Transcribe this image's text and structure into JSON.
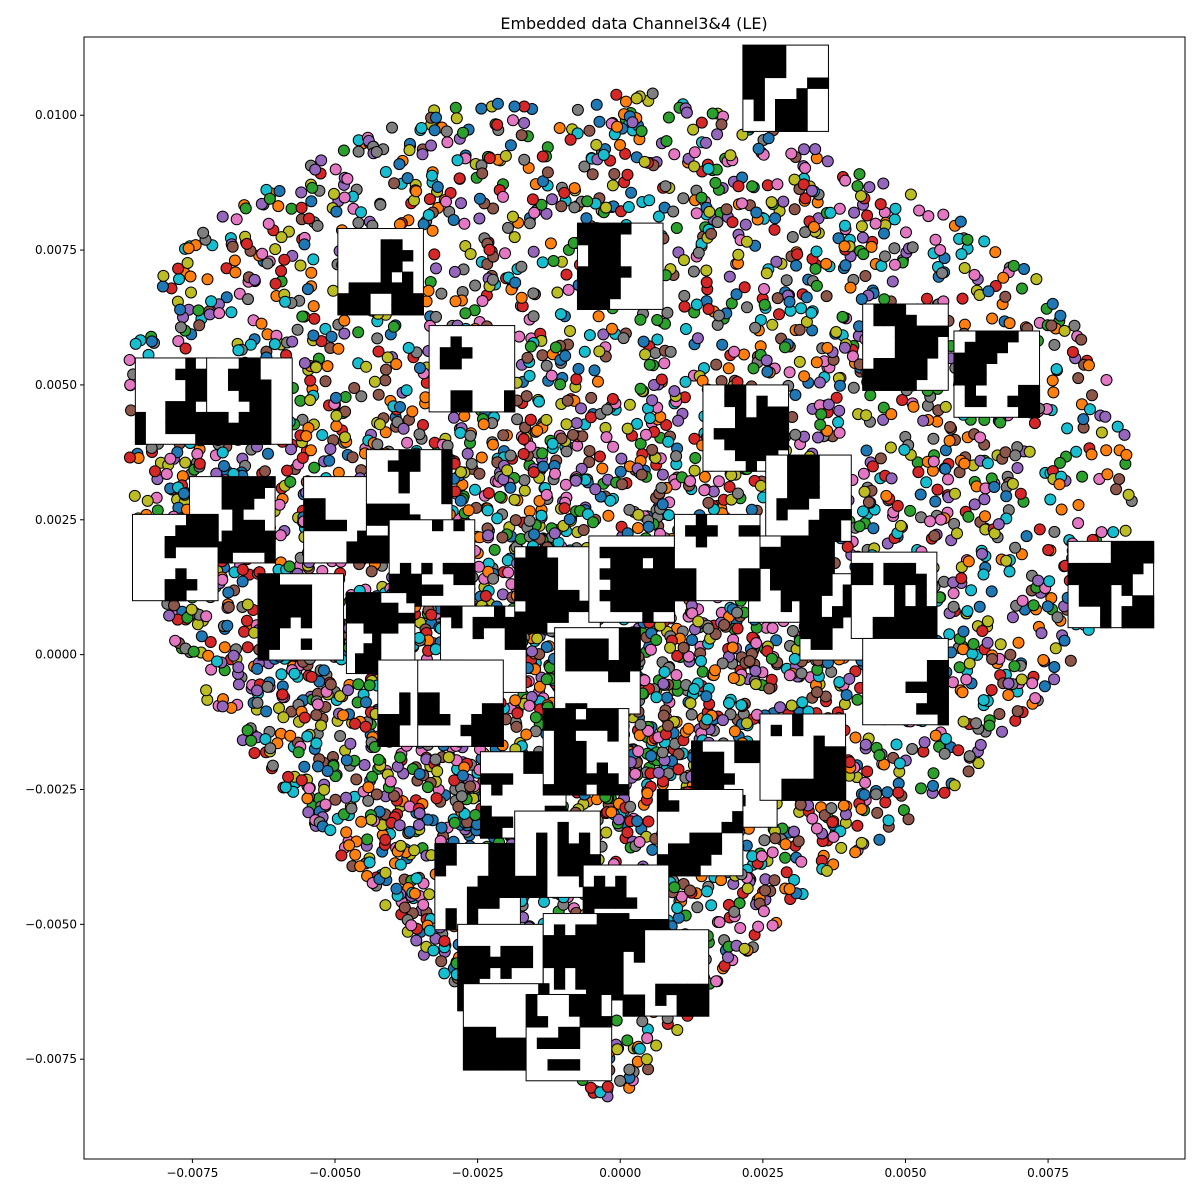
{
  "chart_data": {
    "type": "scatter",
    "title": "Embedded data Channel3&4 (LE)",
    "xlabel": "",
    "ylabel": "",
    "xlim": [
      -0.0094,
      0.0099
    ],
    "ylim": [
      -0.00935,
      0.01145
    ],
    "x_ticks": [
      -0.0075,
      -0.005,
      -0.0025,
      0.0,
      0.0025,
      0.005,
      0.0075
    ],
    "x_tick_labels": [
      "−0.0075",
      "−0.0050",
      "−0.0025",
      "0.0000",
      "0.0025",
      "0.0050",
      "0.0075"
    ],
    "y_ticks": [
      -0.0075,
      -0.005,
      -0.0025,
      0.0,
      0.0025,
      0.005,
      0.0075,
      0.01
    ],
    "y_tick_labels": [
      "−0.0075",
      "−0.0050",
      "−0.0025",
      "0.0000",
      "0.0025",
      "0.0050",
      "0.0075",
      "0.0100"
    ],
    "grid": false,
    "legend": "none",
    "marker_edge_color": "#000000",
    "palette": [
      "#1f77b4",
      "#ff7f0e",
      "#2ca02c",
      "#d62728",
      "#9467bd",
      "#8c564b",
      "#e377c2",
      "#7f7f7f",
      "#bcbd22",
      "#17becf"
    ],
    "boundary": [
      [
        0.0,
        -0.0084
      ],
      [
        -0.0012,
        -0.0078
      ],
      [
        -0.0025,
        -0.0068
      ],
      [
        -0.0035,
        -0.0055
      ],
      [
        -0.0045,
        -0.0042
      ],
      [
        -0.0055,
        -0.003
      ],
      [
        -0.0065,
        -0.0018
      ],
      [
        -0.0075,
        -0.0005
      ],
      [
        -0.0083,
        0.0015
      ],
      [
        -0.0087,
        0.0035
      ],
      [
        -0.0086,
        0.0055
      ],
      [
        -0.008,
        0.0073
      ],
      [
        -0.0068,
        0.0083
      ],
      [
        -0.0055,
        0.0091
      ],
      [
        -0.0042,
        0.0098
      ],
      [
        -0.0025,
        0.0104
      ],
      [
        -0.001,
        0.0101
      ],
      [
        0.0005,
        0.0106
      ],
      [
        0.0018,
        0.0102
      ],
      [
        0.003,
        0.0096
      ],
      [
        0.0042,
        0.009
      ],
      [
        0.0055,
        0.0084
      ],
      [
        0.0065,
        0.0078
      ],
      [
        0.0075,
        0.0068
      ],
      [
        0.0082,
        0.0058
      ],
      [
        0.0088,
        0.0045
      ],
      [
        0.009,
        0.003
      ],
      [
        0.0087,
        0.0015
      ],
      [
        0.008,
        0.0
      ],
      [
        0.0068,
        -0.0015
      ],
      [
        0.0055,
        -0.0028
      ],
      [
        0.004,
        -0.0038
      ],
      [
        0.0028,
        -0.005
      ],
      [
        0.0015,
        -0.0063
      ],
      [
        0.0007,
        -0.0074
      ]
    ],
    "points_per_color": 520,
    "image_thumbnails": [
      {
        "x": -0.0078,
        "y": 0.0047,
        "w": 0.0014,
        "h": 0.0016
      },
      {
        "x": -0.0065,
        "y": 0.0047,
        "w": 0.0015,
        "h": 0.0016
      },
      {
        "x": -0.0068,
        "y": 0.0025,
        "w": 0.0015,
        "h": 0.0016
      },
      {
        "x": -0.0078,
        "y": 0.0018,
        "w": 0.0015,
        "h": 0.0016
      },
      {
        "x": -0.0042,
        "y": 0.0071,
        "w": 0.0015,
        "h": 0.0016
      },
      {
        "x": -0.0026,
        "y": 0.0053,
        "w": 0.0015,
        "h": 0.0016
      },
      {
        "x": 0.0,
        "y": 0.0072,
        "w": 0.0015,
        "h": 0.0016
      },
      {
        "x": -0.0048,
        "y": 0.0025,
        "w": 0.0015,
        "h": 0.0016
      },
      {
        "x": -0.0037,
        "y": 0.003,
        "w": 0.0015,
        "h": 0.0016
      },
      {
        "x": -0.0033,
        "y": 0.0017,
        "w": 0.0015,
        "h": 0.0016
      },
      {
        "x": 0.0022,
        "y": 0.0042,
        "w": 0.0015,
        "h": 0.0016
      },
      {
        "x": 0.0033,
        "y": 0.0029,
        "w": 0.0015,
        "h": 0.0016
      },
      {
        "x": 0.003,
        "y": 0.0014,
        "w": 0.0015,
        "h": 0.0016
      },
      {
        "x": 0.005,
        "y": 0.0057,
        "w": 0.0015,
        "h": 0.0016
      },
      {
        "x": 0.0066,
        "y": 0.0052,
        "w": 0.0015,
        "h": 0.0016
      },
      {
        "x": 0.0029,
        "y": 0.0105,
        "w": 0.0015,
        "h": 0.0016
      },
      {
        "x": 0.0086,
        "y": 0.0013,
        "w": 0.0015,
        "h": 0.0016
      },
      {
        "x": -0.0056,
        "y": 0.0007,
        "w": 0.0015,
        "h": 0.0016
      },
      {
        "x": -0.0042,
        "y": 0.0004,
        "w": 0.0012,
        "h": 0.0015
      },
      {
        "x": -0.0024,
        "y": 0.0001,
        "w": 0.0015,
        "h": 0.0016
      },
      {
        "x": -0.0011,
        "y": 0.0012,
        "w": 0.0015,
        "h": 0.0016
      },
      {
        "x": 0.0002,
        "y": 0.0014,
        "w": 0.0015,
        "h": 0.0016
      },
      {
        "x": -0.0004,
        "y": -0.0003,
        "w": 0.0015,
        "h": 0.0016
      },
      {
        "x": 0.0017,
        "y": 0.0018,
        "w": 0.0015,
        "h": 0.0016
      },
      {
        "x": 0.0039,
        "y": 0.0007,
        "w": 0.0015,
        "h": 0.0016
      },
      {
        "x": 0.0048,
        "y": 0.0011,
        "w": 0.0015,
        "h": 0.0016
      },
      {
        "x": 0.005,
        "y": -0.0005,
        "w": 0.0015,
        "h": 0.0016
      },
      {
        "x": -0.0035,
        "y": -0.0009,
        "w": 0.0015,
        "h": 0.0016
      },
      {
        "x": -0.0028,
        "y": -0.0009,
        "w": 0.0015,
        "h": 0.0016
      },
      {
        "x": -0.0017,
        "y": -0.0026,
        "w": 0.0015,
        "h": 0.0016
      },
      {
        "x": -0.0006,
        "y": -0.0018,
        "w": 0.0015,
        "h": 0.0016
      },
      {
        "x": 0.002,
        "y": -0.0024,
        "w": 0.0015,
        "h": 0.0016
      },
      {
        "x": 0.0032,
        "y": -0.0019,
        "w": 0.0015,
        "h": 0.0016
      },
      {
        "x": 0.0014,
        "y": -0.0033,
        "w": 0.0015,
        "h": 0.0016
      },
      {
        "x": -0.0025,
        "y": -0.0043,
        "w": 0.0015,
        "h": 0.0016
      },
      {
        "x": -0.0011,
        "y": -0.0037,
        "w": 0.0015,
        "h": 0.0016
      },
      {
        "x": 0.0001,
        "y": -0.0047,
        "w": 0.0015,
        "h": 0.0016
      },
      {
        "x": -0.0021,
        "y": -0.0058,
        "w": 0.0015,
        "h": 0.0016
      },
      {
        "x": -0.0006,
        "y": -0.0056,
        "w": 0.0015,
        "h": 0.0016
      },
      {
        "x": 0.0008,
        "y": -0.0059,
        "w": 0.0015,
        "h": 0.0016
      },
      {
        "x": -0.002,
        "y": -0.0069,
        "w": 0.0015,
        "h": 0.0016
      },
      {
        "x": -0.0009,
        "y": -0.0071,
        "w": 0.0015,
        "h": 0.0016
      }
    ]
  }
}
